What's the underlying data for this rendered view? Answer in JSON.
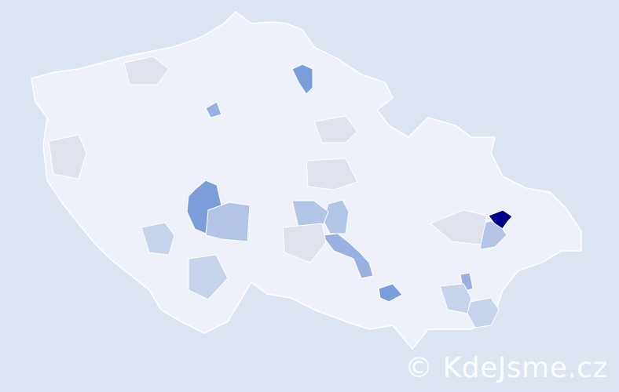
{
  "watermark": "© KdeJsme.cz",
  "colors": {
    "background": "#dce5f1",
    "base_region": "#eef1f9",
    "border": "#ffffff",
    "light": "#dfe3ee",
    "mid_light": "#c7d3ea",
    "mid": "#b3c5e6",
    "medium": "#98b1e0",
    "strong": "#7b9edb",
    "max": "#00008b"
  },
  "regions": [
    {
      "level": "max"
    },
    {
      "level": "strong"
    },
    {
      "level": "strong"
    },
    {
      "level": "strong"
    },
    {
      "level": "medium"
    },
    {
      "level": "medium"
    },
    {
      "level": "medium"
    },
    {
      "level": "mid"
    },
    {
      "level": "mid"
    },
    {
      "level": "mid"
    },
    {
      "level": "mid"
    },
    {
      "level": "mid_light"
    },
    {
      "level": "mid_light"
    },
    {
      "level": "mid_light"
    },
    {
      "level": "mid_light"
    },
    {
      "level": "light"
    },
    {
      "level": "light"
    },
    {
      "level": "light"
    },
    {
      "level": "light"
    },
    {
      "level": "light"
    },
    {
      "level": "light"
    }
  ]
}
